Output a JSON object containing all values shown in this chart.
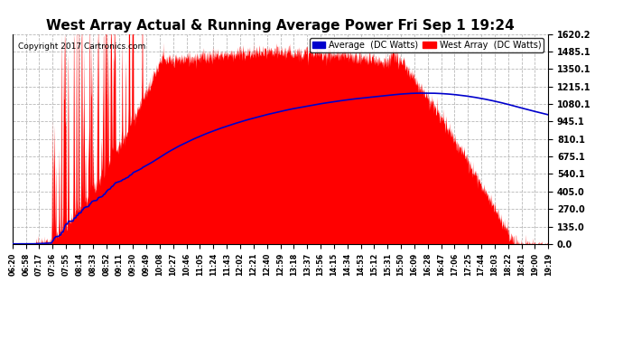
{
  "title": "West Array Actual & Running Average Power Fri Sep 1 19:24",
  "copyright": "Copyright 2017 Cartronics.com",
  "ytick_vals": [
    0.0,
    135.0,
    270.0,
    405.0,
    540.1,
    675.1,
    810.1,
    945.1,
    1080.1,
    1215.1,
    1350.1,
    1485.1,
    1620.2
  ],
  "ymax": 1620.2,
  "ymin": 0.0,
  "bg_color": "#ffffff",
  "plot_bg_color": "#ffffff",
  "grid_color": "#b0b0b0",
  "area_color": "#ff0000",
  "line_color": "#0000cc",
  "title_fontsize": 11,
  "legend_avg_label": "Average  (DC Watts)",
  "legend_west_label": "West Array  (DC Watts)",
  "xtick_labels": [
    "06:20",
    "06:58",
    "07:17",
    "07:36",
    "07:55",
    "08:14",
    "08:33",
    "08:52",
    "09:11",
    "09:30",
    "09:49",
    "10:08",
    "10:27",
    "10:46",
    "11:05",
    "11:24",
    "11:43",
    "12:02",
    "12:21",
    "12:40",
    "12:59",
    "13:18",
    "13:37",
    "13:56",
    "14:15",
    "14:34",
    "14:53",
    "15:12",
    "15:31",
    "15:50",
    "16:09",
    "16:28",
    "16:47",
    "17:06",
    "17:25",
    "17:44",
    "18:03",
    "18:22",
    "18:41",
    "19:00",
    "19:19"
  ]
}
